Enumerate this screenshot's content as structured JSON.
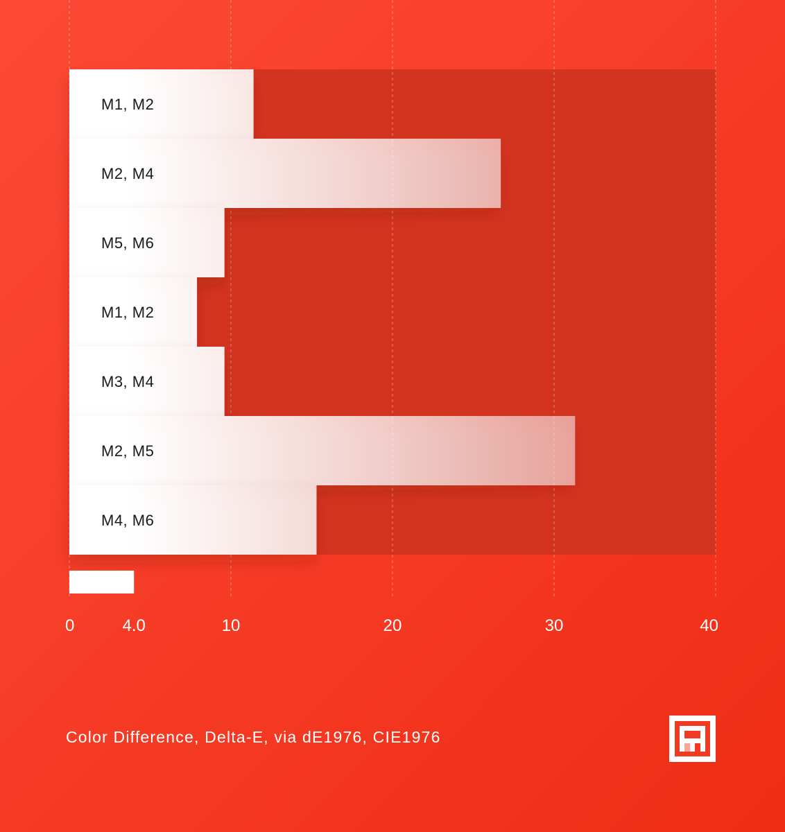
{
  "chart_data": {
    "type": "bar",
    "orientation": "horizontal",
    "categories": [
      "M1, M2",
      "M2, M4",
      "M5, M6",
      "M1, M2",
      "M3, M4",
      "M2, M5",
      "M4, M6"
    ],
    "values": [
      11.4,
      26.7,
      9.6,
      7.9,
      9.6,
      31.3,
      15.3
    ],
    "xlim": [
      0,
      40
    ],
    "xticks": [
      0,
      10,
      20,
      30,
      40
    ],
    "xtick_labels": [
      "0",
      "10",
      "20",
      "30",
      "40"
    ],
    "reference": {
      "value": 4.0,
      "label": "4.0"
    },
    "xlabel": "Color Difference, Delta-E, via dE1976, CIE1976",
    "grid": "vertical dashed",
    "colors": {
      "background": "#f53a24",
      "plot_area": "#d33420",
      "bar": "#ffffff",
      "text": "#1a1a1a",
      "axis_text": "#ffffff"
    }
  },
  "logo": {
    "name": "brand-logo-icon"
  }
}
